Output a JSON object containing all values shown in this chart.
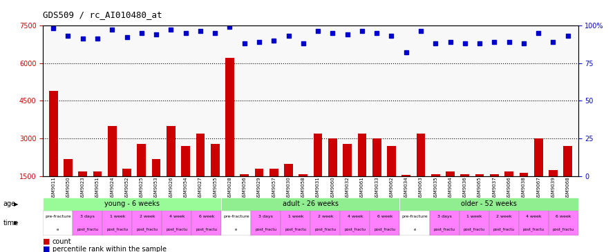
{
  "title": "GDS509 / rc_AI010480_at",
  "gsm_labels": [
    "GSM9011",
    "GSM9050",
    "GSM9023",
    "GSM9051",
    "GSM9024",
    "GSM9052",
    "GSM9025",
    "GSM9053",
    "GSM9026",
    "GSM9054",
    "GSM9027",
    "GSM9055",
    "GSM9028",
    "GSM9056",
    "GSM9029",
    "GSM9057",
    "GSM9030",
    "GSM9058",
    "GSM9031",
    "GSM9060",
    "GSM9032",
    "GSM9061",
    "GSM9033",
    "GSM9062",
    "GSM9034",
    "GSM9063",
    "GSM9035",
    "GSM9064",
    "GSM9036",
    "GSM9065",
    "GSM9037",
    "GSM9066",
    "GSM9038",
    "GSM9067",
    "GSM9039",
    "GSM9068"
  ],
  "counts": [
    4900,
    2200,
    1700,
    1700,
    3500,
    1800,
    2800,
    2200,
    3500,
    2700,
    3200,
    2800,
    6200,
    1600,
    1800,
    1800,
    2000,
    1600,
    3200,
    3000,
    2800,
    3200,
    3000,
    2700,
    1550,
    3200,
    1600,
    1700,
    1600,
    1600,
    1600,
    1700,
    1650,
    3000,
    1750,
    2700
  ],
  "percentile_ranks": [
    98,
    93,
    91,
    91,
    97,
    92,
    95,
    94,
    97,
    95,
    96,
    95,
    99,
    88,
    89,
    90,
    93,
    88,
    96,
    95,
    94,
    96,
    95,
    93,
    82,
    96,
    88,
    89,
    88,
    88,
    89,
    89,
    88,
    95,
    89,
    93
  ],
  "bar_color": "#cc0000",
  "dot_color": "#0000cc",
  "ylim_left": [
    1500,
    7500
  ],
  "ylim_right": [
    0,
    100
  ],
  "yticks_left": [
    1500,
    3000,
    4500,
    6000,
    7500
  ],
  "yticks_right": [
    0,
    25,
    50,
    75,
    100
  ],
  "age_groups": [
    {
      "label": "young - 6 weeks",
      "start": 0,
      "end": 12,
      "color": "#90ee90"
    },
    {
      "label": "adult - 26 weeks",
      "start": 12,
      "end": 24,
      "color": "#90ee90"
    },
    {
      "label": "older - 52 weeks",
      "start": 24,
      "end": 36,
      "color": "#90ee90"
    }
  ],
  "time_labels": [
    "pre-fracture",
    "3 days",
    "1 week",
    "2 week",
    "4 week",
    "6 week",
    "pre-fracture",
    "3 days",
    "1 week",
    "2 week",
    "4 week",
    "6 week",
    "pre-fracture",
    "3 days",
    "1 week",
    "2 week",
    "4 week",
    "6 week"
  ],
  "time_subtexts": [
    "e",
    "post_fractu",
    "post_fractu",
    "post_fractu",
    "post_fractu",
    "post_fractu",
    "e",
    "post_fractu",
    "post_fractu",
    "post_fractu",
    "post_fractu",
    "post_fractu",
    "e",
    "post_fractu",
    "post_fractu",
    "post_fractu",
    "post_fractu",
    "post_fractu"
  ],
  "time_colors": [
    "#ffffff",
    "#ff80ff",
    "#ff80ff",
    "#ff80ff",
    "#ff80ff",
    "#ff80ff"
  ],
  "background_color": "#ffffff",
  "grid_color": "#000000"
}
